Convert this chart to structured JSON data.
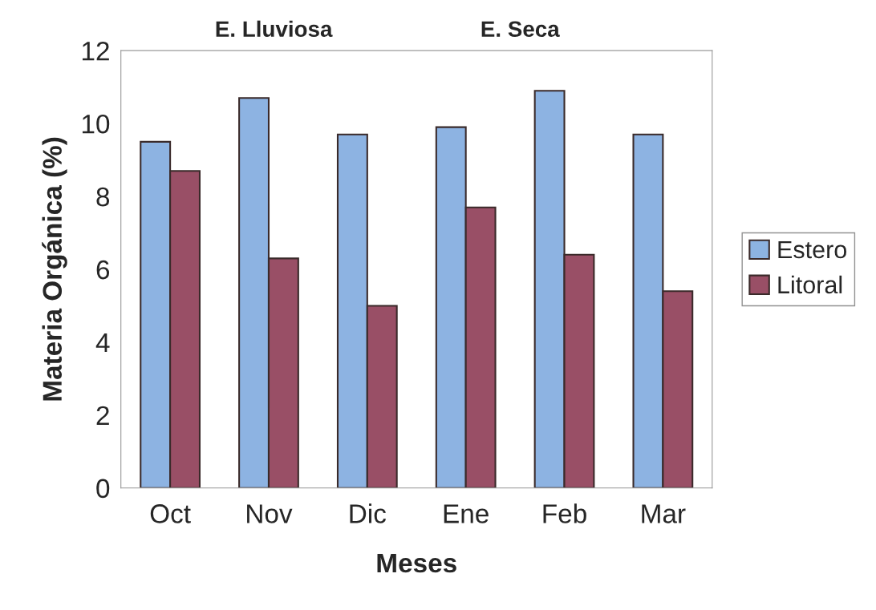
{
  "chart_data": {
    "type": "bar",
    "categories": [
      "Oct",
      "Nov",
      "Dic",
      "Ene",
      "Feb",
      "Mar"
    ],
    "series": [
      {
        "name": "Estero",
        "color": "#8db3e2",
        "values": [
          9.5,
          10.7,
          9.7,
          9.9,
          10.9,
          9.7
        ]
      },
      {
        "name": "Litoral",
        "color": "#994f66",
        "values": [
          8.7,
          6.3,
          5.0,
          7.7,
          6.4,
          5.4
        ]
      }
    ],
    "xlabel": "Meses",
    "ylabel": "Materia Orgánica (%)",
    "annotations": [
      "E. Lluviosa",
      "E. Seca"
    ],
    "ylim": [
      0,
      12
    ],
    "yticks": [
      0,
      2,
      4,
      6,
      8,
      10,
      12
    ],
    "grid": false,
    "legend": "right"
  }
}
